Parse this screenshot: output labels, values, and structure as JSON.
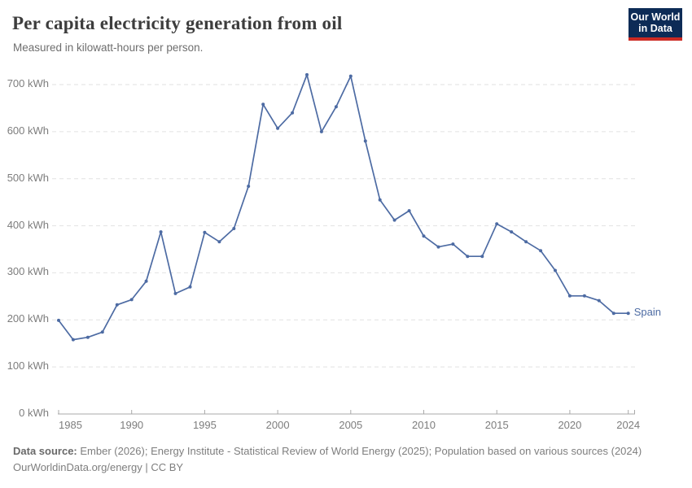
{
  "header": {
    "title": "Per capita electricity generation from oil",
    "subtitle": "Measured in kilowatt-hours per person.",
    "logo": {
      "line1": "Our World",
      "line2": "in Data",
      "bg_color": "#0d2b56",
      "stripe_color": "#cc2a23"
    }
  },
  "chart_data": {
    "type": "line",
    "title": "Per capita electricity generation from oil",
    "ylabel": "",
    "xlabel": "",
    "unit": "kWh",
    "ylim": [
      0,
      700
    ],
    "yticks": [
      0,
      100,
      200,
      300,
      400,
      500,
      600,
      700
    ],
    "ytick_suffix": " kWh",
    "xticks": [
      1985,
      1990,
      1995,
      2000,
      2005,
      2010,
      2015,
      2020,
      2024
    ],
    "grid": "dashed-horizontal",
    "legend_position": "end-of-line-label",
    "x": [
      1985,
      1986,
      1987,
      1988,
      1989,
      1990,
      1991,
      1992,
      1993,
      1994,
      1995,
      1996,
      1997,
      1998,
      1999,
      2000,
      2001,
      2002,
      2003,
      2004,
      2005,
      2006,
      2007,
      2008,
      2009,
      2010,
      2011,
      2012,
      2013,
      2014,
      2015,
      2016,
      2017,
      2018,
      2019,
      2020,
      2021,
      2022,
      2023,
      2024
    ],
    "series": [
      {
        "name": "Spain",
        "color": "#4d6ba3",
        "values": [
          199,
          158,
          163,
          174,
          232,
          243,
          282,
          387,
          256,
          270,
          386,
          366,
          394,
          484,
          658,
          607,
          640,
          721,
          600,
          653,
          718,
          580,
          455,
          412,
          432,
          378,
          355,
          361,
          335,
          335,
          404,
          387,
          366,
          347,
          305,
          251,
          251,
          241,
          214,
          214
        ]
      }
    ]
  },
  "footer": {
    "source_label": "Data source:",
    "source_text": " Ember (2026); Energy Institute - Statistical Review of World Energy (2025); Population based on various sources (2024)",
    "link_text": "OurWorldinData.org/energy",
    "separator": " | ",
    "license_text": "CC BY"
  },
  "colors": {
    "gridline": "#e2e2e2",
    "axis": "#a8a8a8",
    "tick_label": "#7d7d7d"
  }
}
